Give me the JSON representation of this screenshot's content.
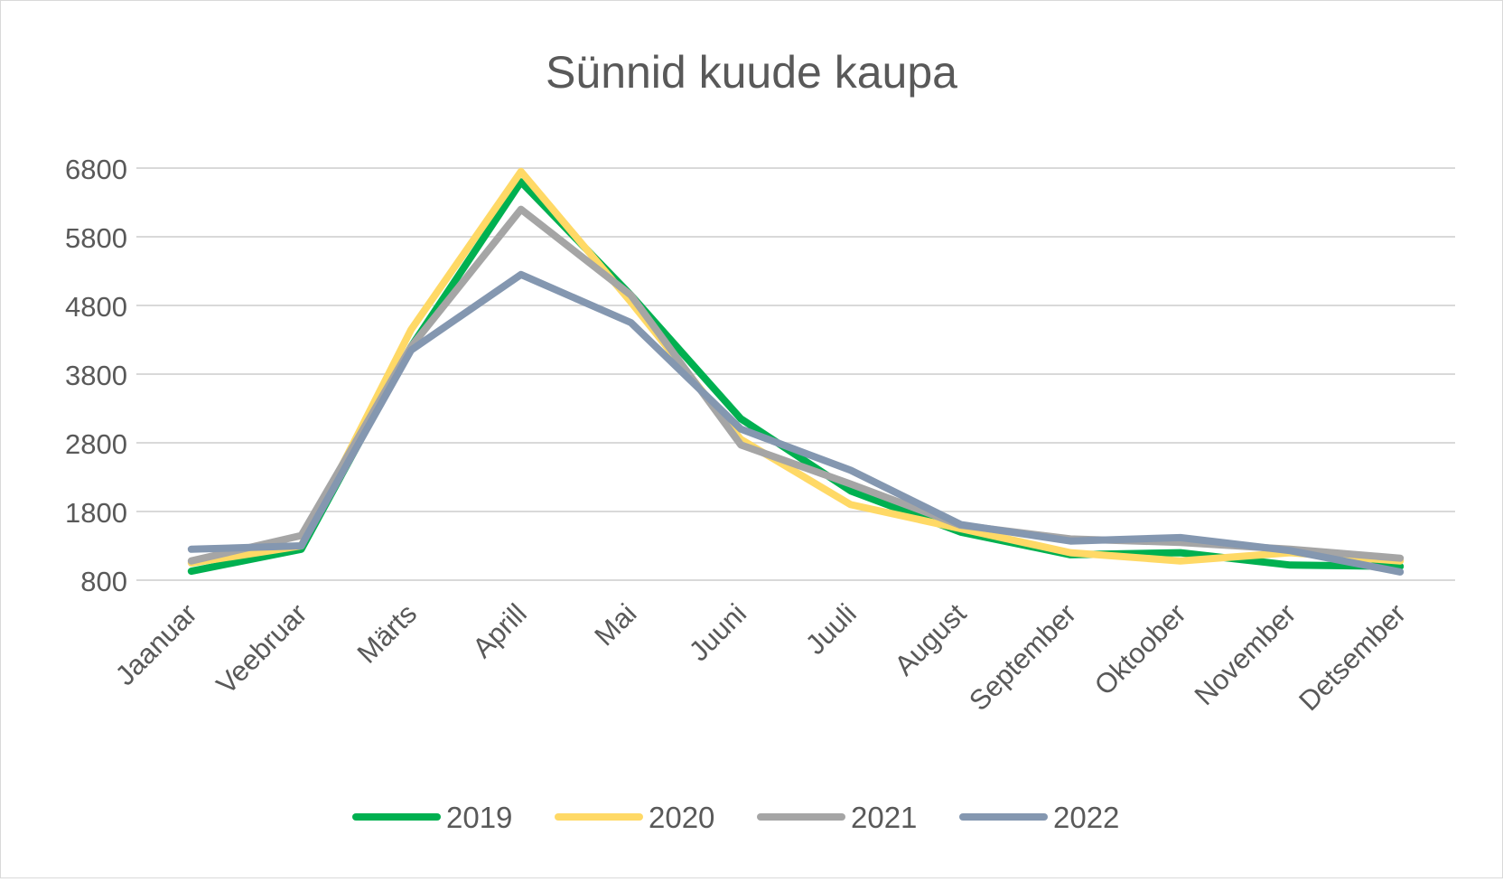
{
  "chart_data": {
    "type": "line",
    "title": "Sünnid kuude kaupa",
    "xlabel": "",
    "ylabel": "",
    "categories": [
      "Jaanuar",
      "Veebruar",
      "Märts",
      "Aprill",
      "Mai",
      "Juuni",
      "Juuli",
      "August",
      "September",
      "Oktoober",
      "November",
      "Detsember"
    ],
    "y_ticks": [
      800,
      1800,
      2800,
      3800,
      4800,
      5800,
      6800
    ],
    "ylim": [
      800,
      6800
    ],
    "grid": true,
    "legend_position": "bottom",
    "series": [
      {
        "name": "2019",
        "color": "#00b050",
        "values": [
          930,
          1250,
          4200,
          6600,
          4950,
          3150,
          2100,
          1500,
          1170,
          1200,
          1020,
          1000
        ]
      },
      {
        "name": "2020",
        "color": "#ffd966",
        "values": [
          1050,
          1300,
          4450,
          6750,
          4850,
          2850,
          1900,
          1550,
          1200,
          1080,
          1200,
          1080
        ]
      },
      {
        "name": "2021",
        "color": "#a5a5a5",
        "values": [
          1080,
          1450,
          4200,
          6200,
          4950,
          2770,
          2200,
          1600,
          1400,
          1350,
          1250,
          1120
        ]
      },
      {
        "name": "2022",
        "color": "#8497b0",
        "values": [
          1250,
          1300,
          4150,
          5250,
          4550,
          3000,
          2400,
          1610,
          1370,
          1420,
          1230,
          920
        ]
      }
    ]
  }
}
